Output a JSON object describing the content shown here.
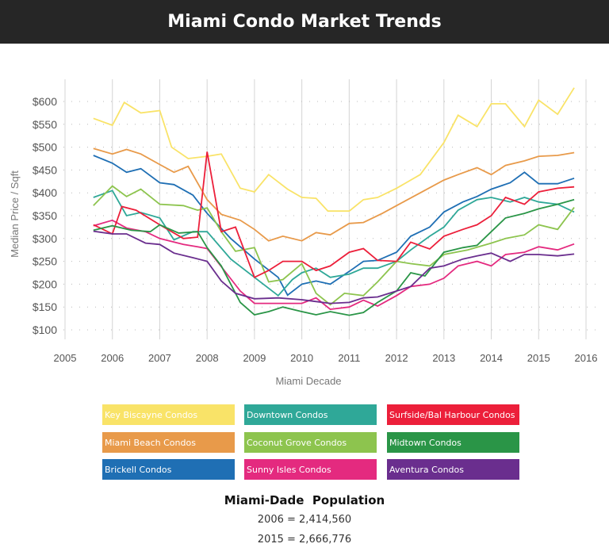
{
  "title": "Miami Condo Market Trends",
  "chart_data": {
    "type": "line",
    "xlabel": "Miami Decade",
    "ylabel": "Median Price / Sqft",
    "xlim": [
      2005,
      2016
    ],
    "ylim": [
      100,
      600
    ],
    "xticks": [
      "2005",
      "2006",
      "2007",
      "2008",
      "2009",
      "2010",
      "2011",
      "2012",
      "2013",
      "2014",
      "2015",
      "2016"
    ],
    "yticks": [
      "$100",
      "$150",
      "$200",
      "$250",
      "$300",
      "$350",
      "$400",
      "$450",
      "$500",
      "$550",
      "$600"
    ],
    "grid": true,
    "legend_position": "bottom",
    "series": [
      {
        "name": "Key Biscayne Condos",
        "color": "#f9e368",
        "points": [
          [
            2005.6,
            563
          ],
          [
            2006,
            548
          ],
          [
            2006.25,
            598
          ],
          [
            2006.6,
            575
          ],
          [
            2007,
            580
          ],
          [
            2007.25,
            500
          ],
          [
            2007.6,
            475
          ],
          [
            2008,
            480
          ],
          [
            2008.3,
            485
          ],
          [
            2008.7,
            410
          ],
          [
            2009,
            402
          ],
          [
            2009.3,
            440
          ],
          [
            2009.7,
            408
          ],
          [
            2010,
            390
          ],
          [
            2010.3,
            388
          ],
          [
            2010.55,
            360
          ],
          [
            2011,
            360
          ],
          [
            2011.3,
            385
          ],
          [
            2011.6,
            390
          ],
          [
            2012,
            410
          ],
          [
            2012.5,
            440
          ],
          [
            2013,
            510
          ],
          [
            2013.3,
            570
          ],
          [
            2013.7,
            545
          ],
          [
            2014,
            595
          ],
          [
            2014.3,
            595
          ],
          [
            2014.7,
            545
          ],
          [
            2015,
            603
          ],
          [
            2015.4,
            572
          ],
          [
            2015.75,
            630
          ]
        ]
      },
      {
        "name": "Miami Beach Condos",
        "color": "#e89a4a",
        "points": [
          [
            2005.6,
            497
          ],
          [
            2006,
            485
          ],
          [
            2006.3,
            495
          ],
          [
            2006.6,
            485
          ],
          [
            2007,
            462
          ],
          [
            2007.3,
            445
          ],
          [
            2007.6,
            458
          ],
          [
            2008,
            385
          ],
          [
            2008.3,
            353
          ],
          [
            2008.7,
            340
          ],
          [
            2009,
            320
          ],
          [
            2009.3,
            295
          ],
          [
            2009.6,
            305
          ],
          [
            2010,
            295
          ],
          [
            2010.3,
            313
          ],
          [
            2010.6,
            308
          ],
          [
            2011,
            333
          ],
          [
            2011.3,
            335
          ],
          [
            2011.7,
            355
          ],
          [
            2012,
            372
          ],
          [
            2012.5,
            400
          ],
          [
            2013,
            428
          ],
          [
            2013.3,
            440
          ],
          [
            2013.7,
            455
          ],
          [
            2014,
            440
          ],
          [
            2014.3,
            460
          ],
          [
            2014.7,
            470
          ],
          [
            2015,
            480
          ],
          [
            2015.4,
            482
          ],
          [
            2015.75,
            488
          ]
        ]
      },
      {
        "name": "Brickell Condos",
        "color": "#1f6fb4",
        "points": [
          [
            2005.6,
            482
          ],
          [
            2006,
            465
          ],
          [
            2006.3,
            445
          ],
          [
            2006.6,
            453
          ],
          [
            2007,
            422
          ],
          [
            2007.3,
            418
          ],
          [
            2007.7,
            395
          ],
          [
            2008,
            355
          ],
          [
            2008.5,
            300
          ],
          [
            2009,
            255
          ],
          [
            2009.5,
            215
          ],
          [
            2009.7,
            176
          ],
          [
            2010,
            200
          ],
          [
            2010.3,
            207
          ],
          [
            2010.6,
            200
          ],
          [
            2011,
            228
          ],
          [
            2011.3,
            250
          ],
          [
            2011.6,
            252
          ],
          [
            2012,
            270
          ],
          [
            2012.3,
            305
          ],
          [
            2012.7,
            325
          ],
          [
            2013,
            358
          ],
          [
            2013.4,
            380
          ],
          [
            2013.7,
            392
          ],
          [
            2014,
            408
          ],
          [
            2014.4,
            422
          ],
          [
            2014.7,
            445
          ],
          [
            2015,
            420
          ],
          [
            2015.4,
            420
          ],
          [
            2015.75,
            432
          ]
        ]
      },
      {
        "name": "Downtown Condos",
        "color": "#2fa898",
        "points": [
          [
            2005.6,
            390
          ],
          [
            2006,
            405
          ],
          [
            2006.3,
            350
          ],
          [
            2006.6,
            357
          ],
          [
            2007,
            345
          ],
          [
            2007.3,
            297
          ],
          [
            2007.7,
            315
          ],
          [
            2008,
            315
          ],
          [
            2008.5,
            255
          ],
          [
            2009,
            215
          ],
          [
            2009.5,
            175
          ],
          [
            2009.8,
            210
          ],
          [
            2010,
            225
          ],
          [
            2010.3,
            235
          ],
          [
            2010.6,
            215
          ],
          [
            2011,
            222
          ],
          [
            2011.3,
            235
          ],
          [
            2011.6,
            235
          ],
          [
            2012,
            250
          ],
          [
            2012.3,
            275
          ],
          [
            2012.7,
            305
          ],
          [
            2013,
            325
          ],
          [
            2013.3,
            362
          ],
          [
            2013.7,
            385
          ],
          [
            2014,
            390
          ],
          [
            2014.4,
            380
          ],
          [
            2014.7,
            390
          ],
          [
            2015,
            380
          ],
          [
            2015.4,
            375
          ],
          [
            2015.75,
            358
          ]
        ]
      },
      {
        "name": "Coconut Grove Condos",
        "color": "#8dc44e",
        "points": [
          [
            2005.6,
            372
          ],
          [
            2006,
            415
          ],
          [
            2006.3,
            392
          ],
          [
            2006.6,
            408
          ],
          [
            2007,
            375
          ],
          [
            2007.5,
            372
          ],
          [
            2007.8,
            362
          ],
          [
            2008,
            367
          ],
          [
            2008.3,
            315
          ],
          [
            2008.6,
            272
          ],
          [
            2009,
            280
          ],
          [
            2009.3,
            205
          ],
          [
            2009.6,
            210
          ],
          [
            2010,
            245
          ],
          [
            2010.3,
            180
          ],
          [
            2010.6,
            155
          ],
          [
            2010.9,
            180
          ],
          [
            2011.3,
            175
          ],
          [
            2011.6,
            205
          ],
          [
            2012,
            250
          ],
          [
            2012.3,
            245
          ],
          [
            2012.7,
            240
          ],
          [
            2013,
            265
          ],
          [
            2013.5,
            275
          ],
          [
            2014,
            290
          ],
          [
            2014.3,
            300
          ],
          [
            2014.7,
            308
          ],
          [
            2015,
            330
          ],
          [
            2015.4,
            320
          ],
          [
            2015.75,
            368
          ]
        ]
      },
      {
        "name": "Sunny Isles Condos",
        "color": "#e42a7f",
        "points": [
          [
            2005.6,
            328
          ],
          [
            2006,
            340
          ],
          [
            2006.3,
            323
          ],
          [
            2006.7,
            315
          ],
          [
            2007,
            300
          ],
          [
            2007.5,
            287
          ],
          [
            2007.8,
            282
          ],
          [
            2008,
            278
          ],
          [
            2008.4,
            225
          ],
          [
            2008.7,
            185
          ],
          [
            2009,
            158
          ],
          [
            2009.5,
            158
          ],
          [
            2010,
            158
          ],
          [
            2010.3,
            170
          ],
          [
            2010.6,
            145
          ],
          [
            2011,
            150
          ],
          [
            2011.3,
            165
          ],
          [
            2011.6,
            152
          ],
          [
            2012,
            175
          ],
          [
            2012.3,
            195
          ],
          [
            2012.7,
            200
          ],
          [
            2013,
            213
          ],
          [
            2013.3,
            240
          ],
          [
            2013.7,
            250
          ],
          [
            2014,
            240
          ],
          [
            2014.3,
            265
          ],
          [
            2014.7,
            270
          ],
          [
            2015,
            282
          ],
          [
            2015.4,
            275
          ],
          [
            2015.75,
            288
          ]
        ]
      },
      {
        "name": "Surfside/Bal Harbour Condos",
        "color": "#ec1f3a",
        "points": [
          [
            2005.6,
            330
          ],
          [
            2006,
            310
          ],
          [
            2006.2,
            370
          ],
          [
            2006.5,
            362
          ],
          [
            2007,
            330
          ],
          [
            2007.5,
            300
          ],
          [
            2007.8,
            303
          ],
          [
            2008,
            490
          ],
          [
            2008.3,
            315
          ],
          [
            2008.6,
            325
          ],
          [
            2009,
            215
          ],
          [
            2009.3,
            230
          ],
          [
            2009.6,
            250
          ],
          [
            2010,
            250
          ],
          [
            2010.3,
            230
          ],
          [
            2010.6,
            240
          ],
          [
            2011,
            270
          ],
          [
            2011.3,
            278
          ],
          [
            2011.6,
            252
          ],
          [
            2012,
            250
          ],
          [
            2012.3,
            292
          ],
          [
            2012.7,
            277
          ],
          [
            2013,
            305
          ],
          [
            2013.4,
            320
          ],
          [
            2013.7,
            330
          ],
          [
            2014,
            350
          ],
          [
            2014.3,
            390
          ],
          [
            2014.7,
            375
          ],
          [
            2015,
            402
          ],
          [
            2015.4,
            410
          ],
          [
            2015.75,
            413
          ]
        ]
      },
      {
        "name": "Midtown Condos",
        "color": "#2a9547",
        "points": [
          [
            2005.6,
            318
          ],
          [
            2006,
            328
          ],
          [
            2006.4,
            318
          ],
          [
            2006.8,
            315
          ],
          [
            2007,
            330
          ],
          [
            2007.4,
            312
          ],
          [
            2007.8,
            315
          ],
          [
            2008,
            280
          ],
          [
            2008.3,
            240
          ],
          [
            2008.7,
            160
          ],
          [
            2009,
            133
          ],
          [
            2009.3,
            140
          ],
          [
            2009.6,
            150
          ],
          [
            2010,
            140
          ],
          [
            2010.3,
            133
          ],
          [
            2010.6,
            140
          ],
          [
            2011,
            132
          ],
          [
            2011.3,
            138
          ],
          [
            2011.6,
            160
          ],
          [
            2012,
            185
          ],
          [
            2012.3,
            225
          ],
          [
            2012.6,
            218
          ],
          [
            2013,
            270
          ],
          [
            2013.4,
            280
          ],
          [
            2013.7,
            285
          ],
          [
            2014,
            315
          ],
          [
            2014.3,
            345
          ],
          [
            2014.7,
            355
          ],
          [
            2015,
            365
          ],
          [
            2015.4,
            375
          ],
          [
            2015.75,
            385
          ]
        ]
      },
      {
        "name": "Aventura Condos",
        "color": "#6a2e8e",
        "points": [
          [
            2005.6,
            316
          ],
          [
            2006,
            310
          ],
          [
            2006.3,
            310
          ],
          [
            2006.7,
            290
          ],
          [
            2007,
            287
          ],
          [
            2007.3,
            268
          ],
          [
            2007.7,
            258
          ],
          [
            2008,
            250
          ],
          [
            2008.3,
            207
          ],
          [
            2008.6,
            180
          ],
          [
            2009,
            168
          ],
          [
            2009.5,
            170
          ],
          [
            2010,
            166
          ],
          [
            2010.3,
            162
          ],
          [
            2010.6,
            158
          ],
          [
            2011,
            160
          ],
          [
            2011.3,
            170
          ],
          [
            2011.6,
            172
          ],
          [
            2012,
            185
          ],
          [
            2012.3,
            195
          ],
          [
            2012.7,
            235
          ],
          [
            2013,
            240
          ],
          [
            2013.4,
            255
          ],
          [
            2013.7,
            262
          ],
          [
            2014,
            268
          ],
          [
            2014.4,
            250
          ],
          [
            2014.7,
            265
          ],
          [
            2015,
            265
          ],
          [
            2015.4,
            262
          ],
          [
            2015.75,
            266
          ]
        ]
      }
    ]
  },
  "legend": [
    {
      "label": "Key Biscayne Condos",
      "color": "#f9e368"
    },
    {
      "label": "Downtown Condos",
      "color": "#2fa898"
    },
    {
      "label": "Surfside/Bal Harbour Condos",
      "color": "#ec1f3a"
    },
    {
      "label": "Miami Beach Condos",
      "color": "#e89a4a"
    },
    {
      "label": "Coconut Grove Condos",
      "color": "#8dc44e"
    },
    {
      "label": "Midtown Condos",
      "color": "#2a9547"
    },
    {
      "label": "Brickell Condos",
      "color": "#1f6fb4"
    },
    {
      "label": "Sunny Isles Condos",
      "color": "#e42a7f"
    },
    {
      "label": "Aventura Condos",
      "color": "#6a2e8e"
    }
  ],
  "population": {
    "title_left": "Miami-Dade",
    "title_right": "Population",
    "line1": "2006 = 2,414,560",
    "line2": "2015 = 2,666,776"
  }
}
